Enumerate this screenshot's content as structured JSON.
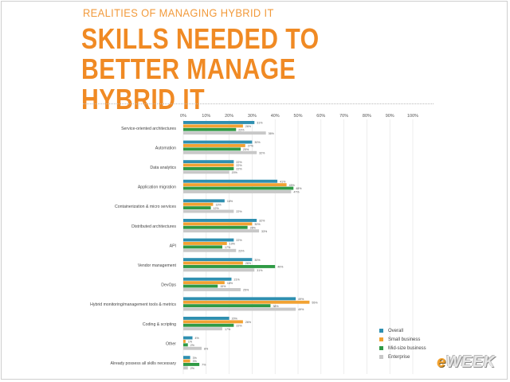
{
  "header": {
    "kicker": "REALITIES OF MANAGING HYBRID IT",
    "title": "SKILLS NEEDED TO BETTER MANAGE HYBRID IT"
  },
  "logo": {
    "e": "e",
    "rest": "WEEK"
  },
  "colors": {
    "Overall": "#2e8fb0",
    "Small business": "#f2a232",
    "Mid-size business": "#2f9a45",
    "Enterprise": "#c8c8c8"
  },
  "chart_data": {
    "type": "bar",
    "orientation": "horizontal",
    "xlim": [
      0,
      100
    ],
    "xticks": [
      "0%",
      "10%",
      "20%",
      "30%",
      "40%",
      "50%",
      "60%",
      "70%",
      "80%",
      "90%",
      "100%"
    ],
    "legend_position": "bottom-right",
    "categories": [
      "Service-oriented architectures",
      "Automation",
      "Data analytics",
      "Application migration",
      "Containerization & micro services",
      "Distributed architectures",
      "API",
      "Vendor management",
      "DevOps",
      "Hybrid monitoring/management tools & metrics",
      "Coding & scripting",
      "Other",
      "Already possess all skills necessary"
    ],
    "series": [
      {
        "name": "Overall",
        "values": [
          31,
          30,
          22,
          41,
          18,
          32,
          22,
          30,
          21,
          49,
          20,
          4,
          3
        ]
      },
      {
        "name": "Small business",
        "values": [
          26,
          27,
          22,
          45,
          13,
          30,
          19,
          26,
          18,
          55,
          26,
          1,
          3
        ]
      },
      {
        "name": "Mid-size business",
        "values": [
          23,
          25,
          22,
          48,
          12,
          28,
          17,
          40,
          15,
          38,
          22,
          2,
          7
        ]
      },
      {
        "name": "Enterprise",
        "values": [
          36,
          32,
          20,
          47,
          22,
          33,
          23,
          31,
          25,
          49,
          17,
          8,
          2
        ]
      }
    ]
  }
}
